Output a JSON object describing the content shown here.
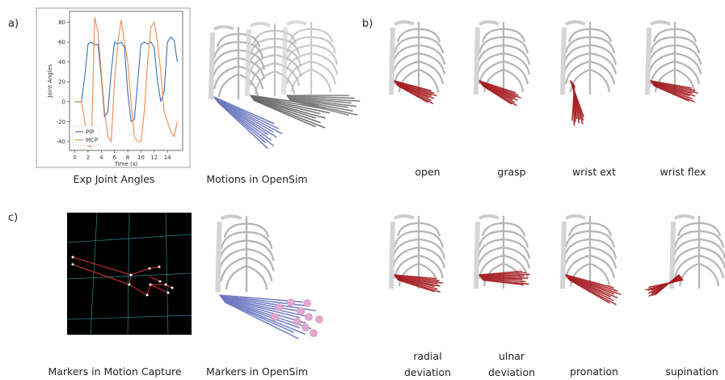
{
  "panel_labels": [
    "a)",
    "b)",
    "c)"
  ],
  "captions": {
    "exp_joint_angles": "Exp Joint Angles",
    "motions_opensim": "Motions in OpenSim",
    "open": "open",
    "grasp": "grasp",
    "wrist_ext": "wrist ext",
    "wrist_flex": "wrist flex",
    "markers_mocap": "Markers in Motion Capture",
    "markers_opensim": "Markers in OpenSim",
    "radial_deviation": "radial deviation",
    "ulnar_deviation": "ulnar deviation",
    "pronation": "pronation",
    "supination": "supination"
  },
  "chart_data": {
    "type": "line",
    "x_label": "Time (s)",
    "y_label": "Joint Angles",
    "x": [
      0,
      0.5,
      1,
      1.5,
      2,
      2.5,
      3,
      3.5,
      4,
      4.5,
      5,
      5.5,
      6,
      6.5,
      7,
      7.5,
      8,
      8.5,
      9,
      9.5,
      10,
      10.5,
      11,
      11.5,
      12,
      12.5,
      13,
      13.5,
      14,
      14.5,
      15,
      15.5
    ],
    "series": [
      {
        "name": "PIP",
        "color": "#3b6fb0",
        "values": [
          0,
          0,
          0,
          25,
          58,
          60,
          57,
          58,
          25,
          -15,
          -10,
          30,
          60,
          58,
          60,
          55,
          10,
          -20,
          -18,
          20,
          58,
          60,
          58,
          60,
          55,
          20,
          0,
          10,
          60,
          65,
          62,
          40
        ]
      },
      {
        "name": "MCP",
        "color": "#f08a4b",
        "values": [
          0,
          0,
          0,
          -20,
          -45,
          -45,
          85,
          70,
          30,
          -10,
          -35,
          -40,
          20,
          60,
          82,
          60,
          40,
          0,
          -35,
          -40,
          -40,
          -10,
          40,
          75,
          80,
          60,
          30,
          -10,
          -20,
          -30,
          -35,
          -20
        ]
      }
    ],
    "xlim": [
      -0.8,
      16.3
    ],
    "ylim": [
      -49,
      91
    ],
    "xticks": [
      0,
      2,
      4,
      6,
      8,
      10,
      12,
      14
    ],
    "yticks": [
      -40,
      -20,
      0,
      20,
      40,
      60,
      80
    ],
    "legend": "lower left"
  }
}
